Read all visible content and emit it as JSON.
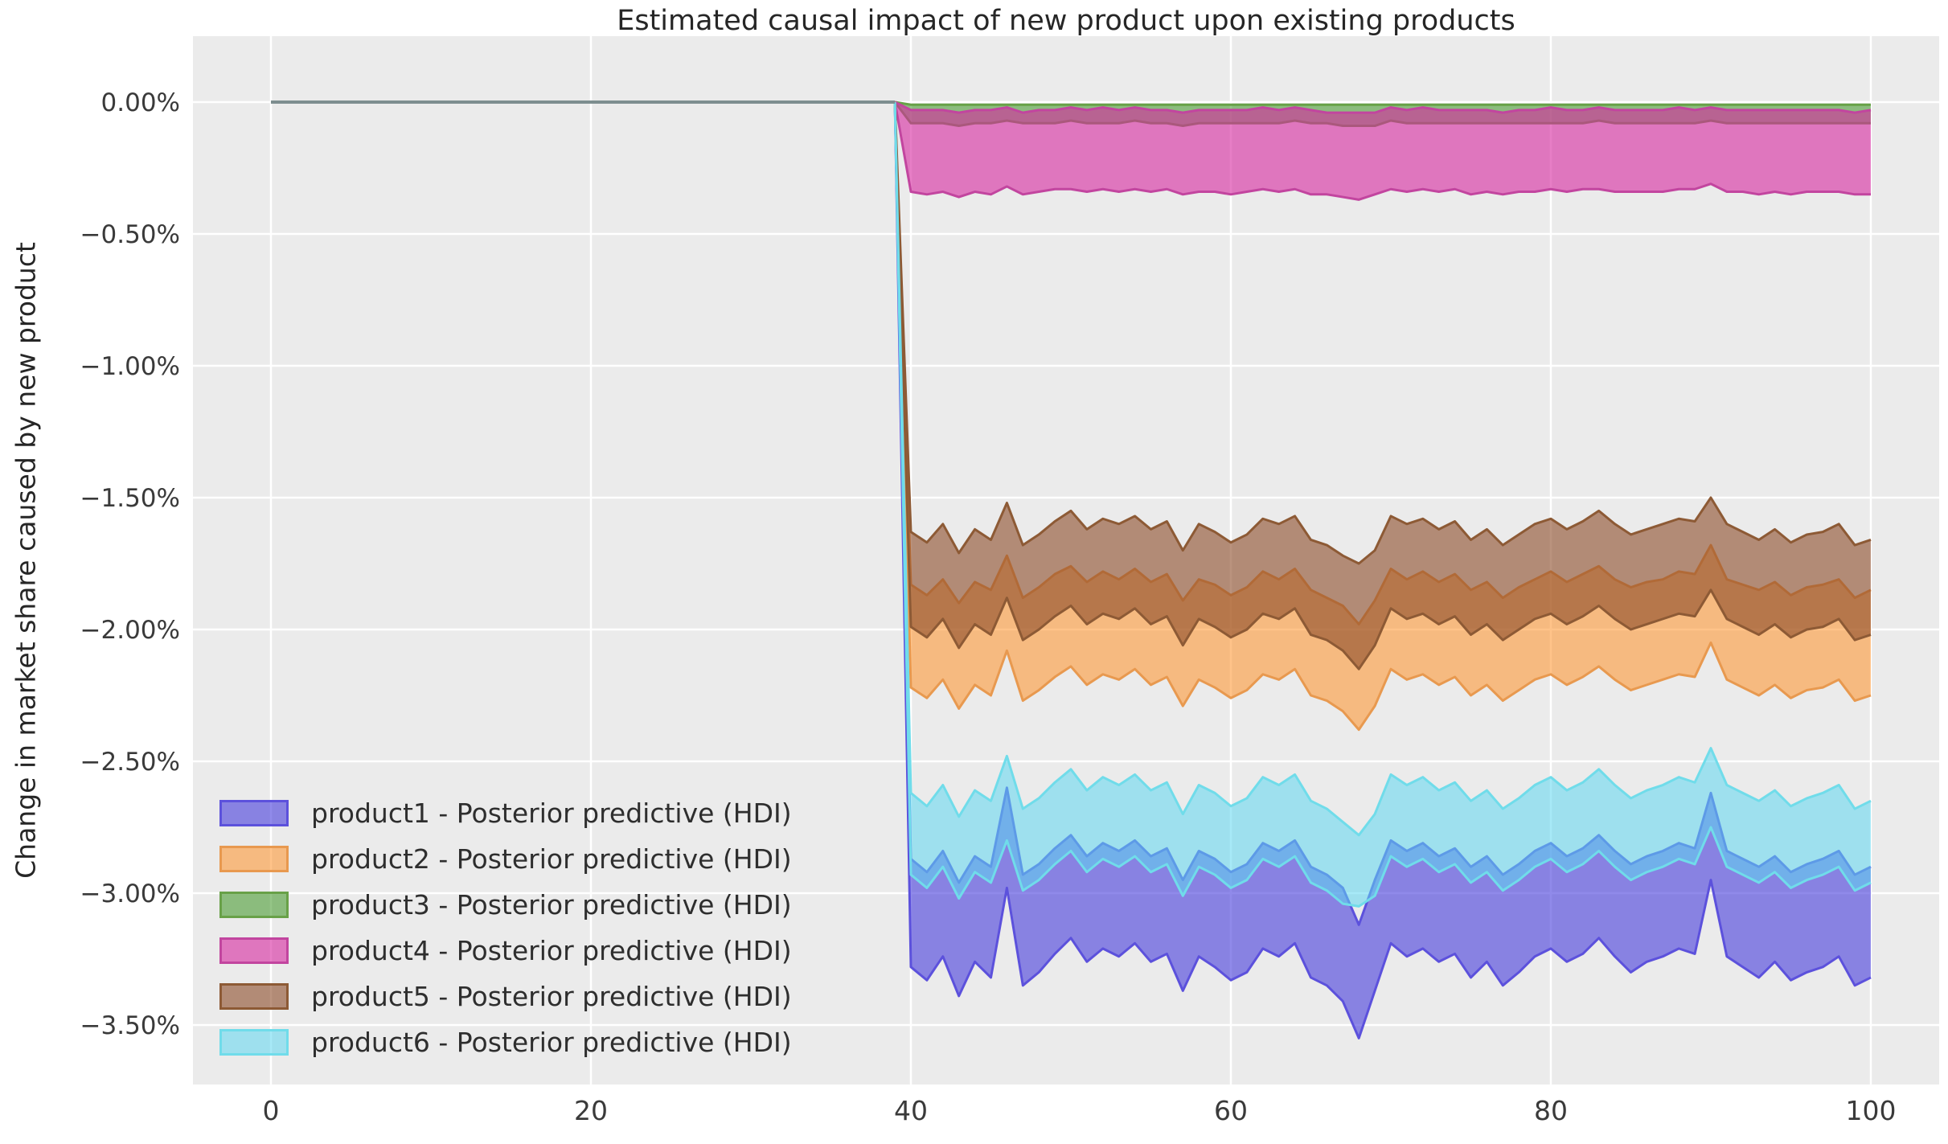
{
  "chart": {
    "title": "Estimated causal impact of new product upon existing products",
    "ylabel": "Change in market share caused by new product",
    "xlabel": "",
    "figure_background": "#ffffff",
    "axes_background": "#ebebeb",
    "grid_color": "#ffffff",
    "tick_label_color": "#3a3a3a",
    "title_color": "#262626",
    "pre_period_line_color": "#7d8e8f"
  },
  "chart_data": {
    "type": "area",
    "title": "Estimated causal impact of new product upon existing products",
    "xlabel": "",
    "ylabel": "Change in market share caused by new product",
    "grid": true,
    "legend_position": "lower left",
    "x_ticks": [
      0,
      20,
      40,
      60,
      80,
      100
    ],
    "y_ticks": [
      {
        "value": 0.0,
        "label": "0.00%"
      },
      {
        "value": -0.5,
        "label": "−0.50%"
      },
      {
        "value": -1.0,
        "label": "−1.00%"
      },
      {
        "value": -1.5,
        "label": "−1.50%"
      },
      {
        "value": -2.0,
        "label": "−2.00%"
      },
      {
        "value": -2.5,
        "label": "−2.50%"
      },
      {
        "value": -3.0,
        "label": "−3.00%"
      },
      {
        "value": -3.5,
        "label": "−3.50%"
      }
    ],
    "xlim": [
      -4.9,
      104.3
    ],
    "ylim_pct": [
      -3.73,
      0.25
    ],
    "pre_period": {
      "x_start": 0,
      "x_end": 39,
      "value_pct": 0
    },
    "impact_start_x": 39,
    "x": [
      40,
      41,
      42,
      43,
      44,
      45,
      46,
      47,
      48,
      49,
      50,
      51,
      52,
      53,
      54,
      55,
      56,
      57,
      58,
      59,
      60,
      61,
      62,
      63,
      64,
      65,
      66,
      67,
      68,
      69,
      70,
      71,
      72,
      73,
      74,
      75,
      76,
      77,
      78,
      79,
      80,
      81,
      82,
      83,
      84,
      85,
      86,
      87,
      88,
      89,
      90,
      91,
      92,
      93,
      94,
      95,
      96,
      97,
      98,
      99,
      100
    ],
    "series": [
      {
        "name": "product1",
        "label": "product1 - Posterior predictive (HDI)",
        "fill": "rgba(70,60,220,0.6)",
        "edge": "#5C51DC",
        "hdi_upper_pct": [
          -2.87,
          -2.92,
          -2.84,
          -2.96,
          -2.86,
          -2.9,
          -2.6,
          -2.93,
          -2.89,
          -2.83,
          -2.78,
          -2.86,
          -2.81,
          -2.84,
          -2.8,
          -2.86,
          -2.83,
          -2.95,
          -2.84,
          -2.87,
          -2.92,
          -2.89,
          -2.81,
          -2.84,
          -2.8,
          -2.9,
          -2.93,
          -2.98,
          -3.12,
          -2.95,
          -2.8,
          -2.84,
          -2.81,
          -2.86,
          -2.83,
          -2.9,
          -2.86,
          -2.93,
          -2.89,
          -2.84,
          -2.81,
          -2.86,
          -2.83,
          -2.78,
          -2.84,
          -2.89,
          -2.86,
          -2.84,
          -2.81,
          -2.83,
          -2.62,
          -2.84,
          -2.87,
          -2.9,
          -2.86,
          -2.92,
          -2.89,
          -2.87,
          -2.84,
          -2.93,
          -2.9
        ],
        "hdi_lower_pct": [
          -3.28,
          -3.33,
          -3.24,
          -3.39,
          -3.26,
          -3.32,
          -2.98,
          -3.35,
          -3.3,
          -3.23,
          -3.17,
          -3.26,
          -3.21,
          -3.24,
          -3.19,
          -3.26,
          -3.23,
          -3.37,
          -3.24,
          -3.28,
          -3.33,
          -3.3,
          -3.21,
          -3.24,
          -3.19,
          -3.32,
          -3.35,
          -3.41,
          -3.55,
          -3.37,
          -3.19,
          -3.24,
          -3.21,
          -3.26,
          -3.23,
          -3.32,
          -3.26,
          -3.35,
          -3.3,
          -3.24,
          -3.21,
          -3.26,
          -3.23,
          -3.17,
          -3.24,
          -3.3,
          -3.26,
          -3.24,
          -3.21,
          -3.23,
          -2.95,
          -3.24,
          -3.28,
          -3.32,
          -3.26,
          -3.33,
          -3.3,
          -3.28,
          -3.24,
          -3.35,
          -3.32
        ]
      },
      {
        "name": "product2",
        "label": "product2 - Posterior predictive (HDI)",
        "fill": "rgba(255,145,40,0.55)",
        "edge": "#E8994F",
        "hdi_upper_pct": [
          -1.83,
          -1.87,
          -1.81,
          -1.9,
          -1.82,
          -1.85,
          -1.72,
          -1.88,
          -1.84,
          -1.79,
          -1.76,
          -1.82,
          -1.78,
          -1.81,
          -1.77,
          -1.82,
          -1.79,
          -1.89,
          -1.81,
          -1.83,
          -1.87,
          -1.84,
          -1.78,
          -1.81,
          -1.77,
          -1.85,
          -1.88,
          -1.91,
          -1.98,
          -1.89,
          -1.77,
          -1.81,
          -1.78,
          -1.82,
          -1.79,
          -1.85,
          -1.82,
          -1.88,
          -1.84,
          -1.81,
          -1.78,
          -1.82,
          -1.79,
          -1.76,
          -1.81,
          -1.84,
          -1.82,
          -1.81,
          -1.78,
          -1.79,
          -1.68,
          -1.81,
          -1.83,
          -1.85,
          -1.82,
          -1.87,
          -1.84,
          -1.83,
          -1.81,
          -1.88,
          -1.85
        ],
        "hdi_lower_pct": [
          -2.22,
          -2.26,
          -2.19,
          -2.3,
          -2.21,
          -2.25,
          -2.08,
          -2.27,
          -2.23,
          -2.18,
          -2.14,
          -2.21,
          -2.17,
          -2.19,
          -2.15,
          -2.21,
          -2.18,
          -2.29,
          -2.19,
          -2.22,
          -2.26,
          -2.23,
          -2.17,
          -2.19,
          -2.15,
          -2.25,
          -2.27,
          -2.31,
          -2.38,
          -2.29,
          -2.15,
          -2.19,
          -2.17,
          -2.21,
          -2.18,
          -2.25,
          -2.21,
          -2.27,
          -2.23,
          -2.19,
          -2.17,
          -2.21,
          -2.18,
          -2.14,
          -2.19,
          -2.23,
          -2.21,
          -2.19,
          -2.17,
          -2.18,
          -2.05,
          -2.19,
          -2.22,
          -2.25,
          -2.21,
          -2.26,
          -2.23,
          -2.22,
          -2.19,
          -2.27,
          -2.25
        ]
      },
      {
        "name": "product3",
        "label": "product3 - Posterior predictive (HDI)",
        "fill": "rgba(60,150,35,0.55)",
        "edge": "#68A148",
        "hdi_upper_pct": [
          -0.01,
          -0.01,
          -0.01,
          -0.01,
          -0.01,
          -0.01,
          -0.01,
          -0.01,
          -0.01,
          -0.01,
          -0.01,
          -0.01,
          -0.01,
          -0.01,
          -0.01,
          -0.01,
          -0.01,
          -0.01,
          -0.01,
          -0.01,
          -0.01,
          -0.01,
          -0.01,
          -0.01,
          -0.01,
          -0.01,
          -0.01,
          -0.01,
          -0.01,
          -0.01,
          -0.01,
          -0.01,
          -0.01,
          -0.01,
          -0.01,
          -0.01,
          -0.01,
          -0.01,
          -0.01,
          -0.01,
          -0.01,
          -0.01,
          -0.01,
          -0.01,
          -0.01,
          -0.01,
          -0.01,
          -0.01,
          -0.01,
          -0.01,
          -0.01,
          -0.01,
          -0.01,
          -0.01,
          -0.01,
          -0.01,
          -0.01,
          -0.01,
          -0.01,
          -0.01,
          -0.01
        ],
        "hdi_lower_pct": [
          -0.08,
          -0.08,
          -0.08,
          -0.09,
          -0.08,
          -0.08,
          -0.07,
          -0.08,
          -0.08,
          -0.08,
          -0.07,
          -0.08,
          -0.08,
          -0.08,
          -0.07,
          -0.08,
          -0.08,
          -0.09,
          -0.08,
          -0.08,
          -0.08,
          -0.08,
          -0.08,
          -0.08,
          -0.07,
          -0.08,
          -0.08,
          -0.09,
          -0.09,
          -0.09,
          -0.07,
          -0.08,
          -0.08,
          -0.08,
          -0.08,
          -0.08,
          -0.08,
          -0.08,
          -0.08,
          -0.08,
          -0.08,
          -0.08,
          -0.08,
          -0.07,
          -0.08,
          -0.08,
          -0.08,
          -0.08,
          -0.08,
          -0.08,
          -0.07,
          -0.08,
          -0.08,
          -0.08,
          -0.08,
          -0.08,
          -0.08,
          -0.08,
          -0.08,
          -0.08,
          -0.08
        ]
      },
      {
        "name": "product4",
        "label": "product4 - Posterior predictive (HDI)",
        "fill": "rgba(215,40,160,0.6)",
        "edge": "#C2459F",
        "hdi_upper_pct": [
          -0.03,
          -0.03,
          -0.03,
          -0.04,
          -0.03,
          -0.03,
          -0.02,
          -0.04,
          -0.03,
          -0.03,
          -0.02,
          -0.03,
          -0.02,
          -0.03,
          -0.02,
          -0.03,
          -0.03,
          -0.04,
          -0.03,
          -0.03,
          -0.03,
          -0.03,
          -0.02,
          -0.03,
          -0.02,
          -0.03,
          -0.04,
          -0.04,
          -0.04,
          -0.04,
          -0.02,
          -0.03,
          -0.02,
          -0.03,
          -0.03,
          -0.03,
          -0.03,
          -0.04,
          -0.03,
          -0.03,
          -0.02,
          -0.03,
          -0.03,
          -0.02,
          -0.03,
          -0.03,
          -0.03,
          -0.03,
          -0.02,
          -0.03,
          -0.02,
          -0.03,
          -0.03,
          -0.03,
          -0.03,
          -0.03,
          -0.03,
          -0.03,
          -0.03,
          -0.04,
          -0.03
        ],
        "hdi_lower_pct": [
          -0.34,
          -0.35,
          -0.34,
          -0.36,
          -0.34,
          -0.35,
          -0.32,
          -0.35,
          -0.34,
          -0.33,
          -0.33,
          -0.34,
          -0.33,
          -0.34,
          -0.33,
          -0.34,
          -0.33,
          -0.35,
          -0.34,
          -0.34,
          -0.35,
          -0.34,
          -0.33,
          -0.34,
          -0.33,
          -0.35,
          -0.35,
          -0.36,
          -0.37,
          -0.35,
          -0.33,
          -0.34,
          -0.33,
          -0.34,
          -0.33,
          -0.35,
          -0.34,
          -0.35,
          -0.34,
          -0.34,
          -0.33,
          -0.34,
          -0.33,
          -0.33,
          -0.34,
          -0.34,
          -0.34,
          -0.34,
          -0.33,
          -0.33,
          -0.31,
          -0.34,
          -0.34,
          -0.35,
          -0.34,
          -0.35,
          -0.34,
          -0.34,
          -0.34,
          -0.35,
          -0.35
        ]
      },
      {
        "name": "product5",
        "label": "product5 - Posterior predictive (HDI)",
        "fill": "rgba(140,75,40,0.6)",
        "edge": "#8D5A35",
        "hdi_upper_pct": [
          -1.63,
          -1.67,
          -1.6,
          -1.71,
          -1.62,
          -1.66,
          -1.52,
          -1.68,
          -1.64,
          -1.59,
          -1.55,
          -1.62,
          -1.58,
          -1.6,
          -1.57,
          -1.62,
          -1.59,
          -1.7,
          -1.6,
          -1.63,
          -1.67,
          -1.64,
          -1.58,
          -1.6,
          -1.57,
          -1.66,
          -1.68,
          -1.72,
          -1.75,
          -1.7,
          -1.57,
          -1.6,
          -1.58,
          -1.62,
          -1.59,
          -1.66,
          -1.62,
          -1.68,
          -1.64,
          -1.6,
          -1.58,
          -1.62,
          -1.59,
          -1.55,
          -1.6,
          -1.64,
          -1.62,
          -1.6,
          -1.58,
          -1.59,
          -1.5,
          -1.6,
          -1.63,
          -1.66,
          -1.62,
          -1.67,
          -1.64,
          -1.63,
          -1.6,
          -1.68,
          -1.66
        ],
        "hdi_lower_pct": [
          -1.99,
          -2.03,
          -1.96,
          -2.07,
          -1.98,
          -2.02,
          -1.88,
          -2.04,
          -2.0,
          -1.95,
          -1.91,
          -1.98,
          -1.94,
          -1.96,
          -1.92,
          -1.98,
          -1.95,
          -2.06,
          -1.96,
          -1.99,
          -2.03,
          -2.0,
          -1.94,
          -1.96,
          -1.92,
          -2.02,
          -2.04,
          -2.08,
          -2.15,
          -2.06,
          -1.92,
          -1.96,
          -1.94,
          -1.98,
          -1.95,
          -2.02,
          -1.98,
          -2.04,
          -2.0,
          -1.96,
          -1.94,
          -1.98,
          -1.95,
          -1.91,
          -1.96,
          -2.0,
          -1.98,
          -1.96,
          -1.94,
          -1.95,
          -1.85,
          -1.96,
          -1.99,
          -2.02,
          -1.98,
          -2.03,
          -2.0,
          -1.99,
          -1.96,
          -2.04,
          -2.02
        ]
      },
      {
        "name": "product6",
        "label": "product6 - Posterior predictive (HDI)",
        "fill": "rgba(95,215,240,0.55)",
        "edge": "#70DCEA",
        "hdi_upper_pct": [
          -2.62,
          -2.67,
          -2.59,
          -2.71,
          -2.61,
          -2.65,
          -2.48,
          -2.68,
          -2.64,
          -2.58,
          -2.53,
          -2.61,
          -2.56,
          -2.59,
          -2.55,
          -2.61,
          -2.58,
          -2.7,
          -2.59,
          -2.62,
          -2.67,
          -2.64,
          -2.56,
          -2.59,
          -2.55,
          -2.65,
          -2.68,
          -2.73,
          -2.78,
          -2.7,
          -2.55,
          -2.59,
          -2.56,
          -2.61,
          -2.58,
          -2.65,
          -2.61,
          -2.68,
          -2.64,
          -2.59,
          -2.56,
          -2.61,
          -2.58,
          -2.53,
          -2.59,
          -2.64,
          -2.61,
          -2.59,
          -2.56,
          -2.58,
          -2.45,
          -2.59,
          -2.62,
          -2.65,
          -2.61,
          -2.67,
          -2.64,
          -2.62,
          -2.59,
          -2.68,
          -2.65
        ],
        "hdi_lower_pct": [
          -2.93,
          -2.98,
          -2.9,
          -3.02,
          -2.92,
          -2.96,
          -2.8,
          -2.99,
          -2.95,
          -2.89,
          -2.84,
          -2.92,
          -2.87,
          -2.9,
          -2.86,
          -2.92,
          -2.89,
          -3.01,
          -2.9,
          -2.93,
          -2.98,
          -2.95,
          -2.87,
          -2.9,
          -2.86,
          -2.96,
          -2.99,
          -3.04,
          -3.05,
          -3.01,
          -2.86,
          -2.9,
          -2.87,
          -2.92,
          -2.89,
          -2.96,
          -2.92,
          -2.99,
          -2.95,
          -2.9,
          -2.87,
          -2.92,
          -2.89,
          -2.84,
          -2.9,
          -2.95,
          -2.92,
          -2.9,
          -2.87,
          -2.89,
          -2.75,
          -2.9,
          -2.93,
          -2.96,
          -2.92,
          -2.98,
          -2.95,
          -2.93,
          -2.9,
          -2.99,
          -2.96
        ]
      }
    ],
    "draw_order": [
      "product1",
      "product2",
      "product3",
      "product4",
      "product5",
      "product6"
    ]
  }
}
